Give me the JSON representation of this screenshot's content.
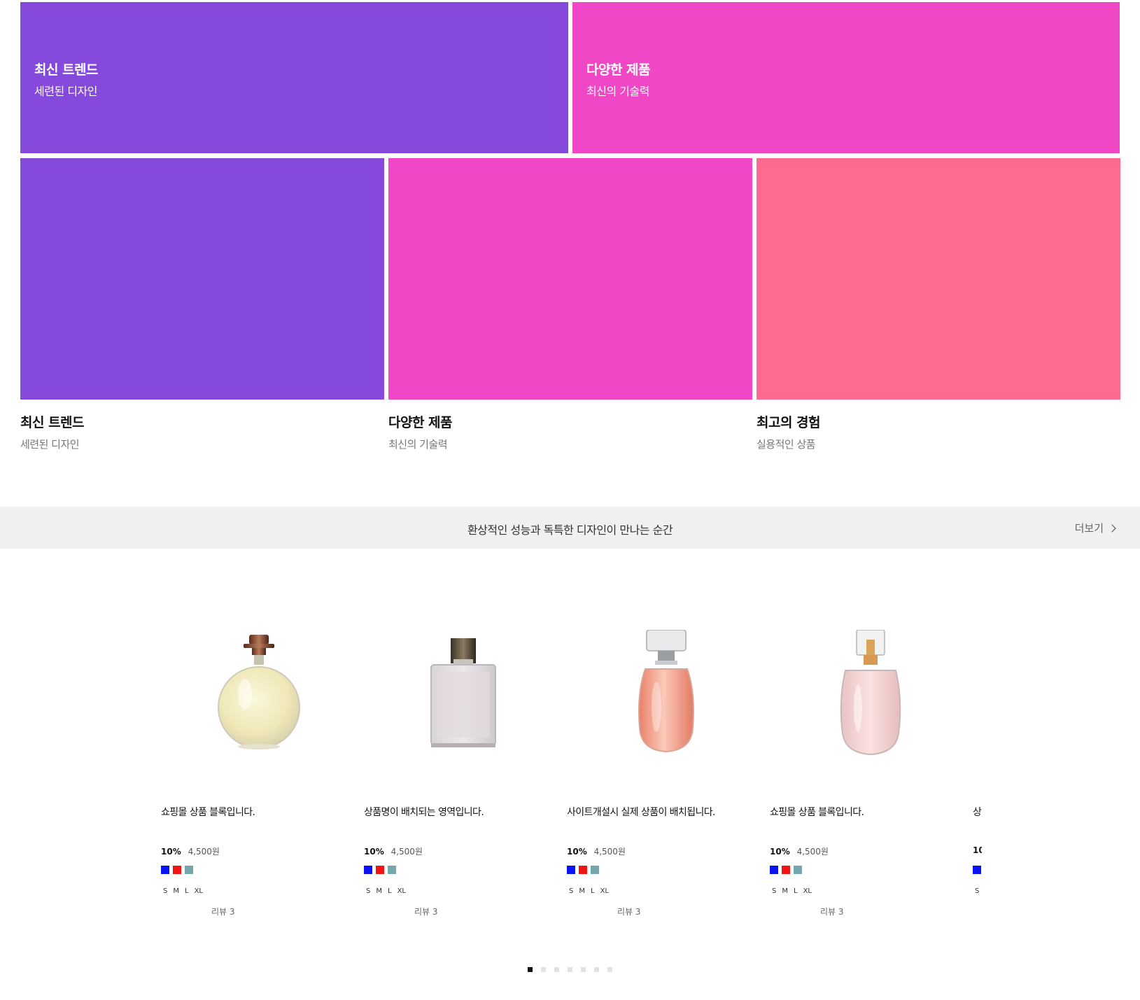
{
  "colors": {
    "purple": "#8549db",
    "magenta": "#ef47c6",
    "pink": "#fe6a90",
    "strip_bg": "#f0f0f0"
  },
  "banners": [
    {
      "title": "최신 트렌드",
      "subtitle": "세련된 디자인",
      "color": "#8549db"
    },
    {
      "title": "다양한 제품",
      "subtitle": "최신의 기술력",
      "color": "#ef47c6"
    }
  ],
  "features": [
    {
      "title": "최신 트렌드",
      "subtitle": "세련된 디자인",
      "color": "#8549db"
    },
    {
      "title": "다양한 제품",
      "subtitle": "최신의 기술력",
      "color": "#ef47c6"
    },
    {
      "title": "최고의 경험",
      "subtitle": "실용적인 상품",
      "color": "#fe6a90"
    }
  ],
  "strip": {
    "text": "환상적인 성능과 독특한 디자인이 만나는 순간",
    "more_label": "더보기"
  },
  "products": [
    {
      "name": "쇼핑몰 상품 블록입니다.",
      "discount": "10%",
      "price": "4,500원",
      "swatches": [
        "#0a14f0",
        "#f01414",
        "#73a7ad"
      ],
      "sizes": [
        "S",
        "M",
        "L",
        "XL"
      ],
      "review": "리뷰 3",
      "image": "round-perfume-icon"
    },
    {
      "name": "상품명이 배치되는 영역입니다.",
      "discount": "10%",
      "price": "4,500원",
      "swatches": [
        "#0a14f0",
        "#f01414",
        "#73a7ad"
      ],
      "sizes": [
        "S",
        "M",
        "L",
        "XL"
      ],
      "review": "리뷰 3",
      "image": "square-perfume-icon"
    },
    {
      "name": "사이트개설시 실제 상품이 배치됩니다.",
      "discount": "10%",
      "price": "4,500원",
      "swatches": [
        "#0a14f0",
        "#f01414",
        "#73a7ad"
      ],
      "sizes": [
        "S",
        "M",
        "L",
        "XL"
      ],
      "review": "리뷰 3",
      "image": "peach-perfume-icon"
    },
    {
      "name": "쇼핑몰 상품 블록입니다.",
      "discount": "10%",
      "price": "4,500원",
      "swatches": [
        "#0a14f0",
        "#f01414",
        "#73a7ad"
      ],
      "sizes": [
        "S",
        "M",
        "L",
        "XL"
      ],
      "review": "리뷰 3",
      "image": "pink-perfume-icon"
    },
    {
      "name": "상",
      "discount": "10",
      "price": "",
      "swatches": [
        "#0a14f0"
      ],
      "sizes": [
        "S"
      ],
      "review": "",
      "image": ""
    }
  ],
  "carousel": {
    "dot_count": 7,
    "active_index": 0
  }
}
